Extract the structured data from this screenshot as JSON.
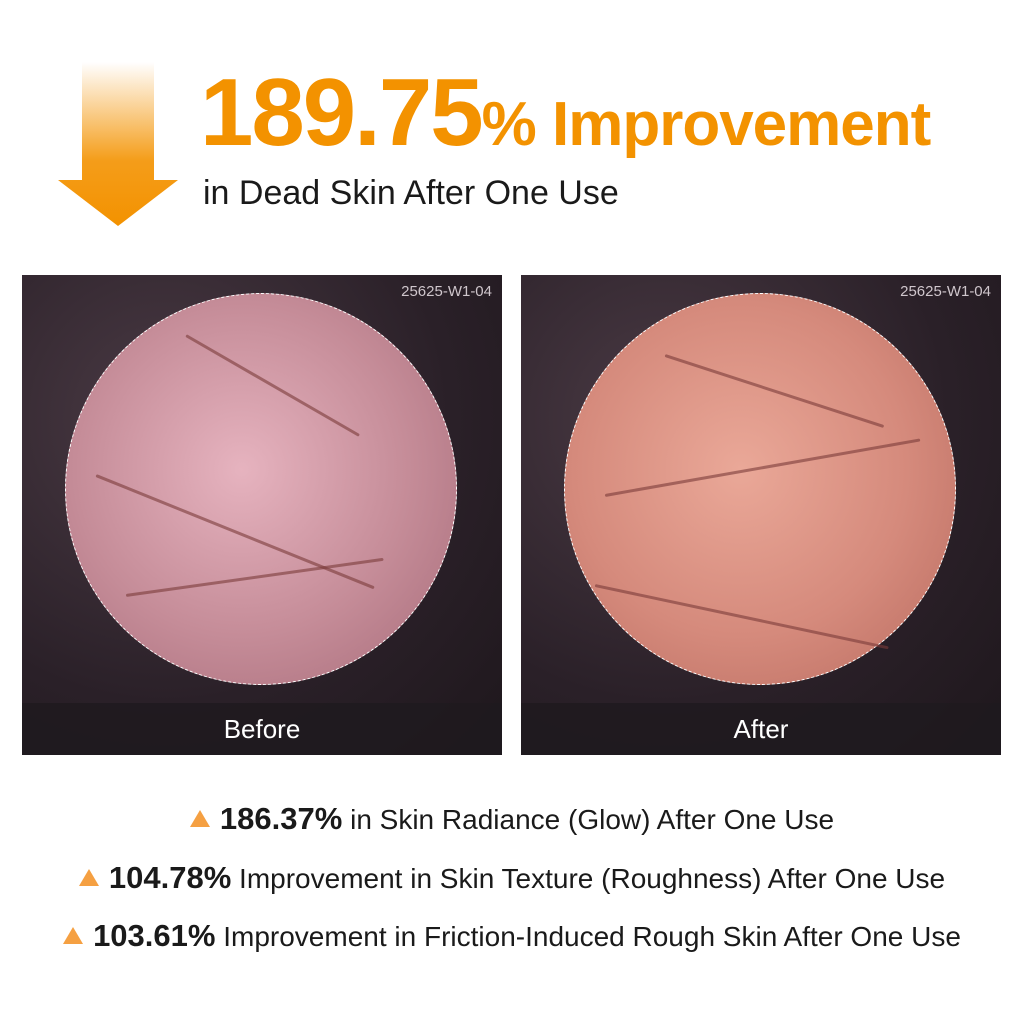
{
  "headline": {
    "value": "189.75",
    "suffix": "% Improvement",
    "subtitle": "in Dead Skin After One Use"
  },
  "colors": {
    "accent": "#F39200",
    "triangle": "#F5A042"
  },
  "panels": [
    {
      "label": "Before",
      "code": "25625-W1-04"
    },
    {
      "label": "After",
      "code": "25625-W1-04"
    }
  ],
  "stats": [
    {
      "value": "186.37%",
      "text": " in Skin Radiance (Glow) After One Use"
    },
    {
      "value": "104.78%",
      "text": " Improvement in Skin Texture (Roughness) After One Use"
    },
    {
      "value": "103.61%",
      "text": " Improvement in Friction-Induced Rough Skin After One Use"
    }
  ],
  "icons": {
    "arrow": "down-arrow-icon",
    "bullet": "triangle-up-icon"
  }
}
